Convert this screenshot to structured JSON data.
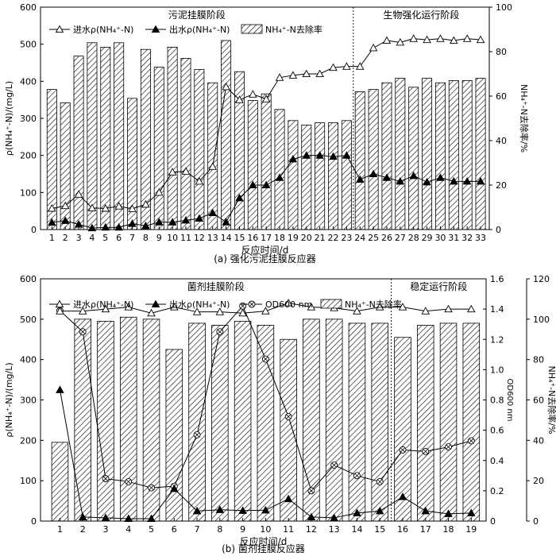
{
  "chart_data": [
    {
      "type": "bar",
      "caption": "(a)  强化污泥挂膜反应器",
      "phase_labels": [
        "污泥挂膜阶段",
        "生物强化运行阶段"
      ],
      "phase_boundary_after_x": 23,
      "xlabel": "反应时间/d",
      "ylabel_left": "ρ(NH₄⁺-N)/(mg/L)",
      "ylabel_right": "NH₄⁺-N去除率/%",
      "ylim_left": [
        0,
        600
      ],
      "yticks_left": [
        0,
        100,
        200,
        300,
        400,
        500,
        600
      ],
      "ylim_right": [
        0,
        100
      ],
      "yticks_right": [
        0,
        20,
        40,
        60,
        80,
        100
      ],
      "x": [
        1,
        2,
        3,
        4,
        5,
        6,
        7,
        8,
        9,
        10,
        11,
        12,
        13,
        14,
        15,
        16,
        17,
        18,
        19,
        20,
        21,
        22,
        23,
        24,
        25,
        26,
        27,
        28,
        29,
        30,
        31,
        32,
        33
      ],
      "legend": [
        "进水ρ(NH₄⁺-N)",
        "出水ρ(NH₄⁺-N)",
        "NH₄⁺-N去除率"
      ],
      "series": [
        {
          "name": "进水ρ(NH₄⁺-N)",
          "axis": "left",
          "marker": "open-triangle",
          "values": [
            57,
            64,
            95,
            58,
            57,
            63,
            56,
            68,
            100,
            155,
            157,
            130,
            170,
            385,
            350,
            365,
            352,
            410,
            416,
            420,
            420,
            437,
            440,
            440,
            490,
            510,
            505,
            515,
            512,
            515,
            510,
            515,
            512
          ]
        },
        {
          "name": "出水ρ(NH₄⁺-N)",
          "axis": "left",
          "marker": "filled-triangle",
          "values": [
            19,
            24,
            14,
            4,
            6,
            6,
            16,
            10,
            20,
            20,
            25,
            30,
            45,
            20,
            85,
            120,
            120,
            140,
            190,
            200,
            200,
            197,
            200,
            135,
            150,
            140,
            130,
            145,
            128,
            140,
            130,
            130,
            130
          ]
        },
        {
          "name": "NH₄⁺-N去除率",
          "axis": "right",
          "marker": "hatched-bar",
          "values": [
            63,
            57,
            78,
            84,
            82,
            84,
            59,
            81,
            73,
            82,
            77,
            72,
            66,
            85,
            71,
            58,
            61,
            54,
            49,
            47,
            48,
            48,
            49,
            62,
            63,
            66,
            68,
            64,
            68,
            66,
            67,
            67,
            68
          ]
        }
      ]
    },
    {
      "type": "bar",
      "caption": "(b)  菌剂挂膜反应器",
      "phase_labels": [
        "菌剂挂膜阶段",
        "稳定运行阶段"
      ],
      "phase_boundary_after_x": 15,
      "xlabel": "反应时间/d",
      "ylabel_left": "ρ(NH₄⁺-N)/(mg/L)",
      "ylabel_mid": "OD600 nm",
      "ylabel_right": "NH₄⁺-N去除率/%",
      "ylim_left": [
        0,
        600
      ],
      "yticks_left": [
        0,
        100,
        200,
        300,
        400,
        500,
        600
      ],
      "ylim_mid": [
        0,
        1.6
      ],
      "yticks_mid": [
        "0",
        "0.2",
        "0.4",
        "0.6",
        "0.8",
        "1.0",
        "1.2",
        "1.4",
        "1.6"
      ],
      "ylim_right": [
        0,
        120
      ],
      "yticks_right": [
        0,
        20,
        40,
        60,
        80,
        100,
        120
      ],
      "x": [
        1,
        2,
        3,
        4,
        5,
        6,
        7,
        8,
        9,
        10,
        11,
        12,
        13,
        14,
        15,
        16,
        17,
        18,
        19
      ],
      "legend": [
        "进水ρ(NH₄⁺-N)",
        "出水ρ(NH₄⁺-N)",
        "OD600 nm",
        "NH₄⁺-N去除率"
      ],
      "series": [
        {
          "name": "进水ρ(NH₄⁺-N)",
          "axis": "left",
          "marker": "open-triangle",
          "values": [
            520,
            520,
            525,
            530,
            515,
            530,
            518,
            518,
            515,
            520,
            540,
            530,
            528,
            520,
            530,
            530,
            520,
            525,
            525
          ]
        },
        {
          "name": "出水ρ(NH₄⁺-N)",
          "axis": "left",
          "marker": "filled-triangle",
          "values": [
            325,
            10,
            8,
            6,
            6,
            80,
            25,
            28,
            26,
            27,
            55,
            10,
            8,
            20,
            25,
            60,
            25,
            18,
            20
          ]
        },
        {
          "name": "OD600 nm",
          "axis": "mid",
          "marker": "crossed-circle",
          "values": [
            1.39,
            1.25,
            0.28,
            0.26,
            0.22,
            0.23,
            0.57,
            1.25,
            1.42,
            1.07,
            0.69,
            0.2,
            0.37,
            0.3,
            0.26,
            0.47,
            0.46,
            0.49,
            0.53
          ]
        },
        {
          "name": "NH₄⁺-N去除率",
          "axis": "right",
          "marker": "hatched-bar",
          "values": [
            39,
            100,
            99,
            101,
            100,
            85,
            98,
            97,
            99,
            97,
            90,
            100,
            100,
            98,
            98,
            91,
            97,
            98,
            98
          ]
        }
      ]
    }
  ]
}
